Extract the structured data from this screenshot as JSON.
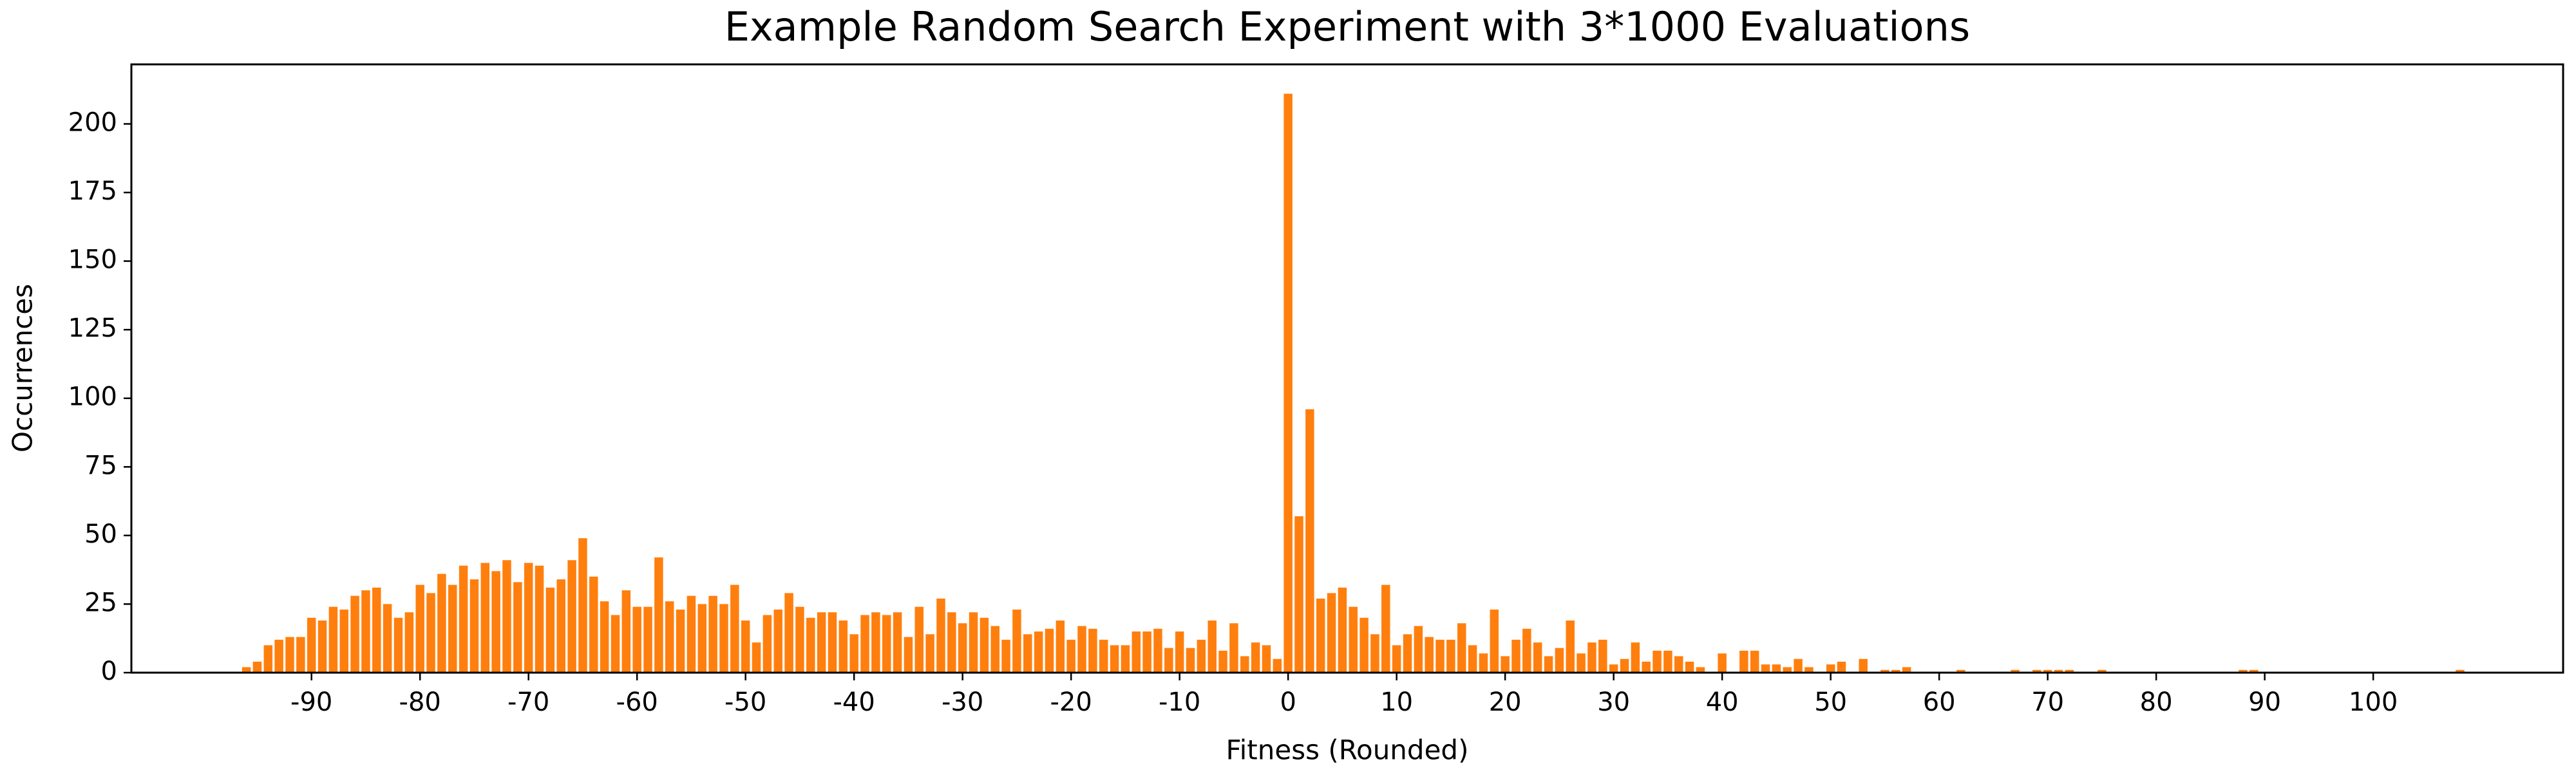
{
  "chart_data": {
    "type": "bar",
    "title": "Example Random Search Experiment with 3*1000 Evaluations",
    "x_label": "Fitness (Rounded)",
    "y_label": "Occurrences",
    "color": "#ff7f0e",
    "x": [
      -96,
      -95,
      -94,
      -93,
      -92,
      -91,
      -90,
      -89,
      -88,
      -87,
      -86,
      -85,
      -84,
      -83,
      -82,
      -81,
      -80,
      -79,
      -78,
      -77,
      -76,
      -75,
      -74,
      -73,
      -72,
      -71,
      -70,
      -69,
      -68,
      -67,
      -66,
      -65,
      -64,
      -63,
      -62,
      -61,
      -60,
      -59,
      -58,
      -57,
      -56,
      -55,
      -54,
      -53,
      -52,
      -51,
      -50,
      -49,
      -48,
      -47,
      -46,
      -45,
      -44,
      -43,
      -42,
      -41,
      -40,
      -39,
      -38,
      -37,
      -36,
      -35,
      -34,
      -33,
      -32,
      -31,
      -30,
      -29,
      -28,
      -27,
      -26,
      -25,
      -24,
      -23,
      -22,
      -21,
      -20,
      -19,
      -18,
      -17,
      -16,
      -15,
      -14,
      -13,
      -12,
      -11,
      -10,
      -9,
      -8,
      -7,
      -6,
      -5,
      -4,
      -3,
      -2,
      -1,
      0,
      1,
      2,
      3,
      4,
      5,
      6,
      7,
      8,
      9,
      10,
      11,
      12,
      13,
      14,
      15,
      16,
      17,
      18,
      19,
      20,
      21,
      22,
      23,
      24,
      25,
      26,
      27,
      28,
      29,
      30,
      31,
      32,
      33,
      34,
      35,
      36,
      37,
      38,
      40,
      42,
      43,
      44,
      45,
      46,
      47,
      48,
      50,
      51,
      53,
      55,
      56,
      57,
      62,
      67,
      69,
      70,
      71,
      72,
      75,
      88,
      89,
      108
    ],
    "values": [
      2,
      4,
      10,
      12,
      13,
      13,
      20,
      19,
      24,
      23,
      28,
      30,
      31,
      25,
      20,
      22,
      32,
      29,
      36,
      32,
      39,
      34,
      40,
      37,
      41,
      33,
      40,
      39,
      31,
      34,
      41,
      49,
      35,
      26,
      21,
      30,
      24,
      24,
      42,
      26,
      23,
      28,
      25,
      28,
      25,
      32,
      19,
      11,
      21,
      23,
      29,
      24,
      20,
      22,
      22,
      19,
      14,
      21,
      22,
      21,
      22,
      13,
      24,
      14,
      27,
      22,
      18,
      22,
      20,
      17,
      12,
      23,
      14,
      15,
      16,
      19,
      12,
      17,
      16,
      12,
      10,
      10,
      15,
      15,
      16,
      9,
      15,
      9,
      12,
      19,
      8,
      18,
      6,
      11,
      10,
      5,
      211,
      57,
      96,
      27,
      29,
      31,
      24,
      20,
      14,
      32,
      10,
      14,
      17,
      13,
      12,
      12,
      18,
      10,
      7,
      23,
      6,
      12,
      16,
      11,
      6,
      9,
      19,
      7,
      11,
      12,
      3,
      5,
      11,
      4,
      8,
      8,
      6,
      4,
      2,
      7,
      8,
      8,
      3,
      3,
      2,
      5,
      2,
      3,
      4,
      5,
      1,
      1,
      2,
      1,
      1,
      1,
      1,
      1,
      1,
      1,
      1,
      1,
      1
    ],
    "xlim": [
      -106.6,
      117.5
    ],
    "ylim": [
      0,
      221.7
    ],
    "xticks": [
      -90,
      -80,
      -70,
      -60,
      -50,
      -40,
      -30,
      -20,
      -10,
      0,
      10,
      20,
      30,
      40,
      50,
      60,
      70,
      80,
      90,
      100
    ],
    "yticks": [
      0,
      25,
      50,
      75,
      100,
      125,
      150,
      175,
      200
    ]
  }
}
